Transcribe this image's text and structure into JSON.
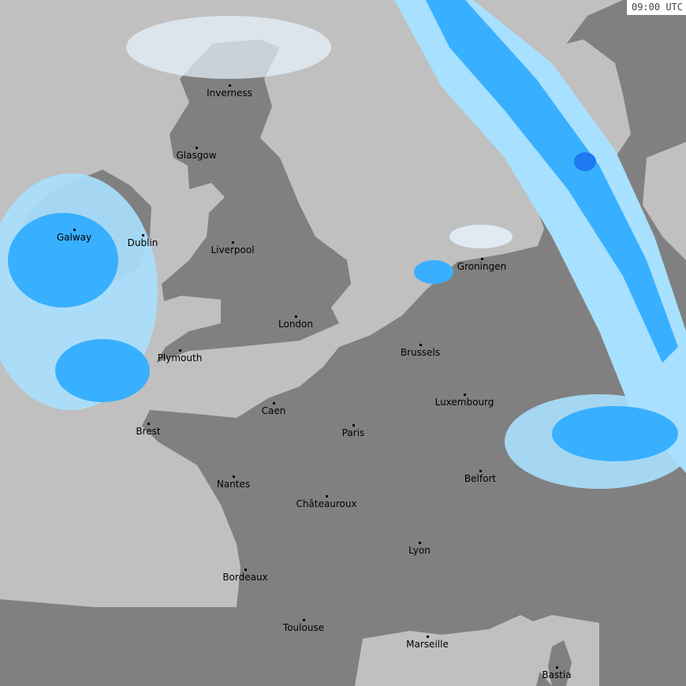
{
  "timestamp": "09:00 UTC",
  "colors": {
    "sea": "#c0c0c0",
    "land": "#808080",
    "border": "#a08080",
    "precip_light": "#e8f4ff",
    "precip_mid": "#a8e0ff",
    "precip_strong": "#38b0ff",
    "precip_heavy": "#1e78f0"
  },
  "cities": [
    {
      "name": "Inverness"
    },
    {
      "name": "Glasgow"
    },
    {
      "name": "Galway"
    },
    {
      "name": "Dublin"
    },
    {
      "name": "Liverpool"
    },
    {
      "name": "London"
    },
    {
      "name": "Plymouth"
    },
    {
      "name": "Caen"
    },
    {
      "name": "Brest"
    },
    {
      "name": "Groningen"
    },
    {
      "name": "Brussels"
    },
    {
      "name": "Luxembourg"
    },
    {
      "name": "Paris"
    },
    {
      "name": "Belfort"
    },
    {
      "name": "Nantes"
    },
    {
      "name": "Châteauroux"
    },
    {
      "name": "Lyon"
    },
    {
      "name": "Bordeaux"
    },
    {
      "name": "Toulouse"
    },
    {
      "name": "Marseille"
    },
    {
      "name": "Bastia"
    }
  ]
}
